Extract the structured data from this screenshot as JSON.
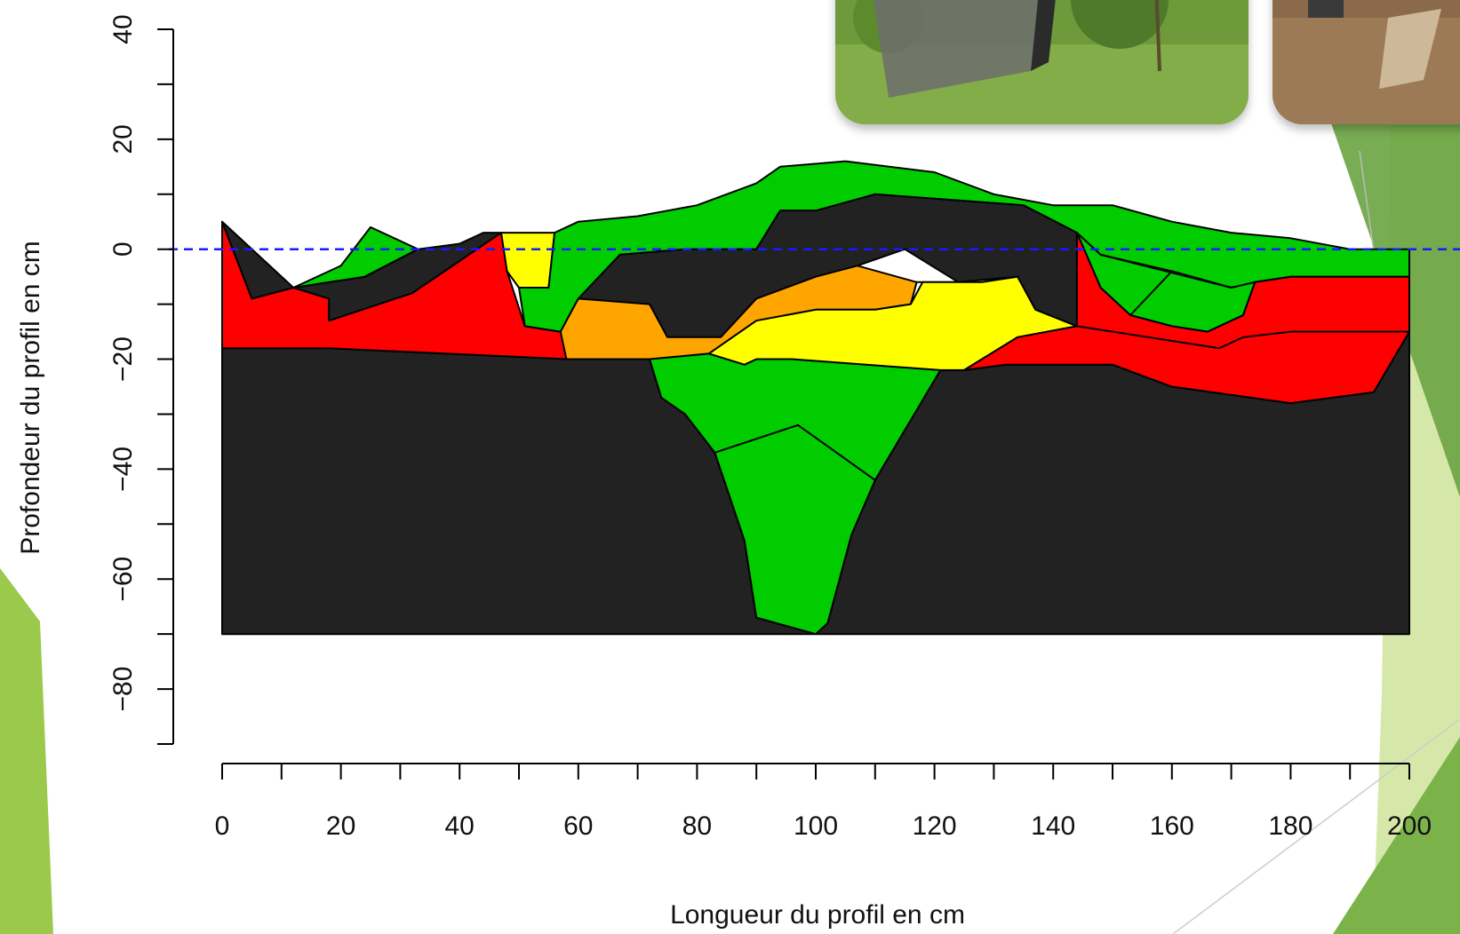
{
  "chart_data": {
    "type": "area",
    "title": "",
    "xlabel": "Longueur du profil en cm",
    "ylabel": "Profondeur du profil en cm",
    "xlim": [
      0,
      200
    ],
    "ylim": [
      -90,
      40
    ],
    "x_ticks": [
      0,
      10,
      20,
      30,
      40,
      50,
      60,
      70,
      80,
      90,
      100,
      110,
      120,
      130,
      140,
      150,
      160,
      170,
      180,
      190,
      200
    ],
    "x_tick_labels": [
      "0",
      "20",
      "40",
      "60",
      "80",
      "100",
      "120",
      "140",
      "160",
      "180",
      "200"
    ],
    "x_tick_label_values": [
      0,
      20,
      40,
      60,
      80,
      100,
      120,
      140,
      160,
      180,
      200
    ],
    "y_ticks": [
      40,
      30,
      20,
      10,
      0,
      -10,
      -20,
      -30,
      -40,
      -50,
      -60,
      -70,
      -80,
      -90
    ],
    "y_tick_labels": [
      "40",
      "20",
      "0",
      "−20",
      "−40",
      "−60",
      "−80"
    ],
    "y_tick_label_values": [
      40,
      20,
      0,
      -20,
      -40,
      -60,
      -80
    ],
    "reference_line": {
      "y": 0,
      "color": "#1a1aff",
      "style": "dashed"
    },
    "grid": false,
    "legend": "none",
    "layer_colors": {
      "black": "#222222",
      "green": "#00cc00",
      "red": "#ff0000",
      "yellow": "#ffff00",
      "orange": "#ffa500",
      "void": "#ffffff"
    },
    "polygons": [
      {
        "fill": "black",
        "points": [
          [
            0,
            -18
          ],
          [
            18,
            -18
          ],
          [
            58,
            -20
          ],
          [
            72,
            -20
          ],
          [
            74,
            -27
          ],
          [
            78,
            -30
          ],
          [
            83,
            -37
          ],
          [
            88,
            -53
          ],
          [
            90,
            -67
          ],
          [
            100,
            -70
          ],
          [
            102,
            -68
          ],
          [
            106,
            -52
          ],
          [
            110,
            -42
          ],
          [
            121,
            -22
          ],
          [
            125,
            -22
          ],
          [
            132,
            -21
          ],
          [
            150,
            -21
          ],
          [
            160,
            -25
          ],
          [
            180,
            -28
          ],
          [
            194,
            -26
          ],
          [
            200,
            -15
          ],
          [
            200,
            -70
          ],
          [
            0,
            -70
          ]
        ]
      },
      {
        "fill": "green",
        "points": [
          [
            72,
            -20
          ],
          [
            82,
            -19
          ],
          [
            88,
            -21
          ],
          [
            90,
            -20
          ],
          [
            96,
            -20
          ],
          [
            121,
            -22
          ],
          [
            110,
            -42
          ],
          [
            106,
            -52
          ],
          [
            102,
            -68
          ],
          [
            100,
            -70
          ],
          [
            90,
            -67
          ],
          [
            88,
            -53
          ],
          [
            83,
            -37
          ],
          [
            78,
            -30
          ],
          [
            74,
            -27
          ]
        ]
      },
      {
        "fill": "red",
        "points": [
          [
            0,
            5
          ],
          [
            5,
            -9
          ],
          [
            12,
            -7
          ],
          [
            18,
            -9
          ],
          [
            18,
            -13
          ],
          [
            32,
            -8
          ],
          [
            47,
            3
          ],
          [
            48,
            -4
          ],
          [
            51,
            -14
          ],
          [
            57,
            -15
          ],
          [
            58,
            -20
          ],
          [
            18,
            -18
          ],
          [
            0,
            -18
          ]
        ]
      },
      {
        "fill": "black",
        "points": [
          [
            0,
            5
          ],
          [
            12,
            -7
          ],
          [
            5,
            -9
          ]
        ]
      },
      {
        "fill": "black",
        "points": [
          [
            12,
            -7
          ],
          [
            24,
            -5
          ],
          [
            33,
            0
          ],
          [
            40,
            1
          ],
          [
            44,
            3
          ],
          [
            47,
            3
          ],
          [
            32,
            -8
          ],
          [
            18,
            -13
          ],
          [
            18,
            -9
          ]
        ]
      },
      {
        "fill": "green",
        "points": [
          [
            12,
            -7
          ],
          [
            20,
            -3
          ],
          [
            25,
            4
          ],
          [
            33,
            0
          ],
          [
            24,
            -5
          ]
        ]
      },
      {
        "fill": "yellow",
        "points": [
          [
            47,
            3
          ],
          [
            56,
            3
          ],
          [
            55,
            -7
          ],
          [
            50,
            -7
          ],
          [
            48,
            -4
          ]
        ]
      },
      {
        "fill": "green",
        "points": [
          [
            56,
            3
          ],
          [
            60,
            5
          ],
          [
            70,
            6
          ],
          [
            80,
            8
          ],
          [
            90,
            12
          ],
          [
            94,
            15
          ],
          [
            105,
            16
          ],
          [
            120,
            14
          ],
          [
            130,
            10
          ],
          [
            140,
            8
          ],
          [
            150,
            8
          ],
          [
            160,
            5
          ],
          [
            170,
            3
          ],
          [
            180,
            2
          ],
          [
            190,
            0
          ],
          [
            200,
            0
          ],
          [
            200,
            -5
          ],
          [
            180,
            -5
          ],
          [
            174,
            -6
          ],
          [
            170,
            -7
          ],
          [
            160,
            -4
          ],
          [
            153,
            -12
          ],
          [
            144,
            3
          ],
          [
            135,
            8
          ],
          [
            110,
            10
          ],
          [
            100,
            7
          ],
          [
            94,
            7
          ],
          [
            90,
            0
          ],
          [
            78,
            0
          ],
          [
            67,
            -1
          ],
          [
            60,
            -9
          ],
          [
            57,
            -15
          ],
          [
            51,
            -14
          ],
          [
            50,
            -7
          ],
          [
            55,
            -7
          ]
        ]
      },
      {
        "fill": "black",
        "points": [
          [
            60,
            -9
          ],
          [
            67,
            -1
          ],
          [
            78,
            0
          ],
          [
            90,
            0
          ],
          [
            94,
            7
          ],
          [
            100,
            7
          ],
          [
            110,
            10
          ],
          [
            135,
            8
          ],
          [
            144,
            3
          ],
          [
            144,
            -14
          ],
          [
            137,
            -11
          ],
          [
            134,
            -5
          ],
          [
            124,
            -6
          ],
          [
            118,
            -6
          ],
          [
            115,
            0
          ],
          [
            108,
            -3
          ],
          [
            100,
            -5
          ],
          [
            90,
            -9
          ],
          [
            84,
            -16
          ],
          [
            75,
            -16
          ],
          [
            72,
            -10
          ]
        ]
      },
      {
        "fill": "void",
        "points": [
          [
            107,
            -3
          ],
          [
            115,
            0
          ],
          [
            124,
            -6
          ],
          [
            116,
            -6
          ]
        ]
      },
      {
        "fill": "orange",
        "points": [
          [
            60,
            -9
          ],
          [
            72,
            -10
          ],
          [
            75,
            -16
          ],
          [
            84,
            -16
          ],
          [
            90,
            -9
          ],
          [
            100,
            -5
          ],
          [
            107,
            -3
          ],
          [
            117,
            -6
          ],
          [
            116,
            -10
          ],
          [
            110,
            -11
          ],
          [
            100,
            -11
          ],
          [
            90,
            -13
          ],
          [
            82,
            -19
          ],
          [
            72,
            -20
          ],
          [
            58,
            -20
          ],
          [
            57,
            -15
          ]
        ]
      },
      {
        "fill": "yellow",
        "points": [
          [
            82,
            -19
          ],
          [
            90,
            -13
          ],
          [
            100,
            -11
          ],
          [
            110,
            -11
          ],
          [
            116,
            -10
          ],
          [
            118,
            -6
          ],
          [
            128,
            -6
          ],
          [
            134,
            -5
          ],
          [
            137,
            -11
          ],
          [
            144,
            -14
          ],
          [
            134,
            -16
          ],
          [
            125,
            -22
          ],
          [
            121,
            -22
          ],
          [
            96,
            -20
          ],
          [
            90,
            -20
          ],
          [
            88,
            -21
          ]
        ]
      },
      {
        "fill": "green",
        "points": [
          [
            144,
            3
          ],
          [
            148,
            -1
          ],
          [
            160,
            -4
          ],
          [
            170,
            -7
          ],
          [
            174,
            -6
          ],
          [
            172,
            -12
          ],
          [
            166,
            -15
          ],
          [
            160,
            -14
          ],
          [
            153,
            -12
          ],
          [
            148,
            -7
          ]
        ]
      },
      {
        "fill": "red",
        "points": [
          [
            144,
            -14
          ],
          [
            144,
            3
          ],
          [
            148,
            -7
          ],
          [
            153,
            -12
          ],
          [
            160,
            -14
          ],
          [
            166,
            -15
          ],
          [
            172,
            -12
          ],
          [
            174,
            -6
          ],
          [
            180,
            -5
          ],
          [
            200,
            -5
          ],
          [
            200,
            -15
          ],
          [
            194,
            -26
          ],
          [
            180,
            -28
          ],
          [
            160,
            -25
          ],
          [
            150,
            -21
          ],
          [
            132,
            -21
          ],
          [
            125,
            -22
          ],
          [
            134,
            -16
          ]
        ]
      }
    ],
    "extra_lines": [
      [
        [
          83,
          -37
        ],
        [
          97,
          -32
        ],
        [
          110,
          -42
        ]
      ],
      [
        [
          144,
          -14
        ],
        [
          168,
          -18
        ],
        [
          172,
          -16
        ],
        [
          180,
          -15
        ],
        [
          200,
          -15
        ]
      ],
      [
        [
          153,
          -12
        ],
        [
          160,
          -4
        ]
      ],
      [
        [
          148,
          -1
        ],
        [
          170,
          -7
        ]
      ]
    ]
  },
  "photos": [
    {
      "name": "field-photo-grass"
    },
    {
      "name": "field-photo-soil"
    }
  ]
}
